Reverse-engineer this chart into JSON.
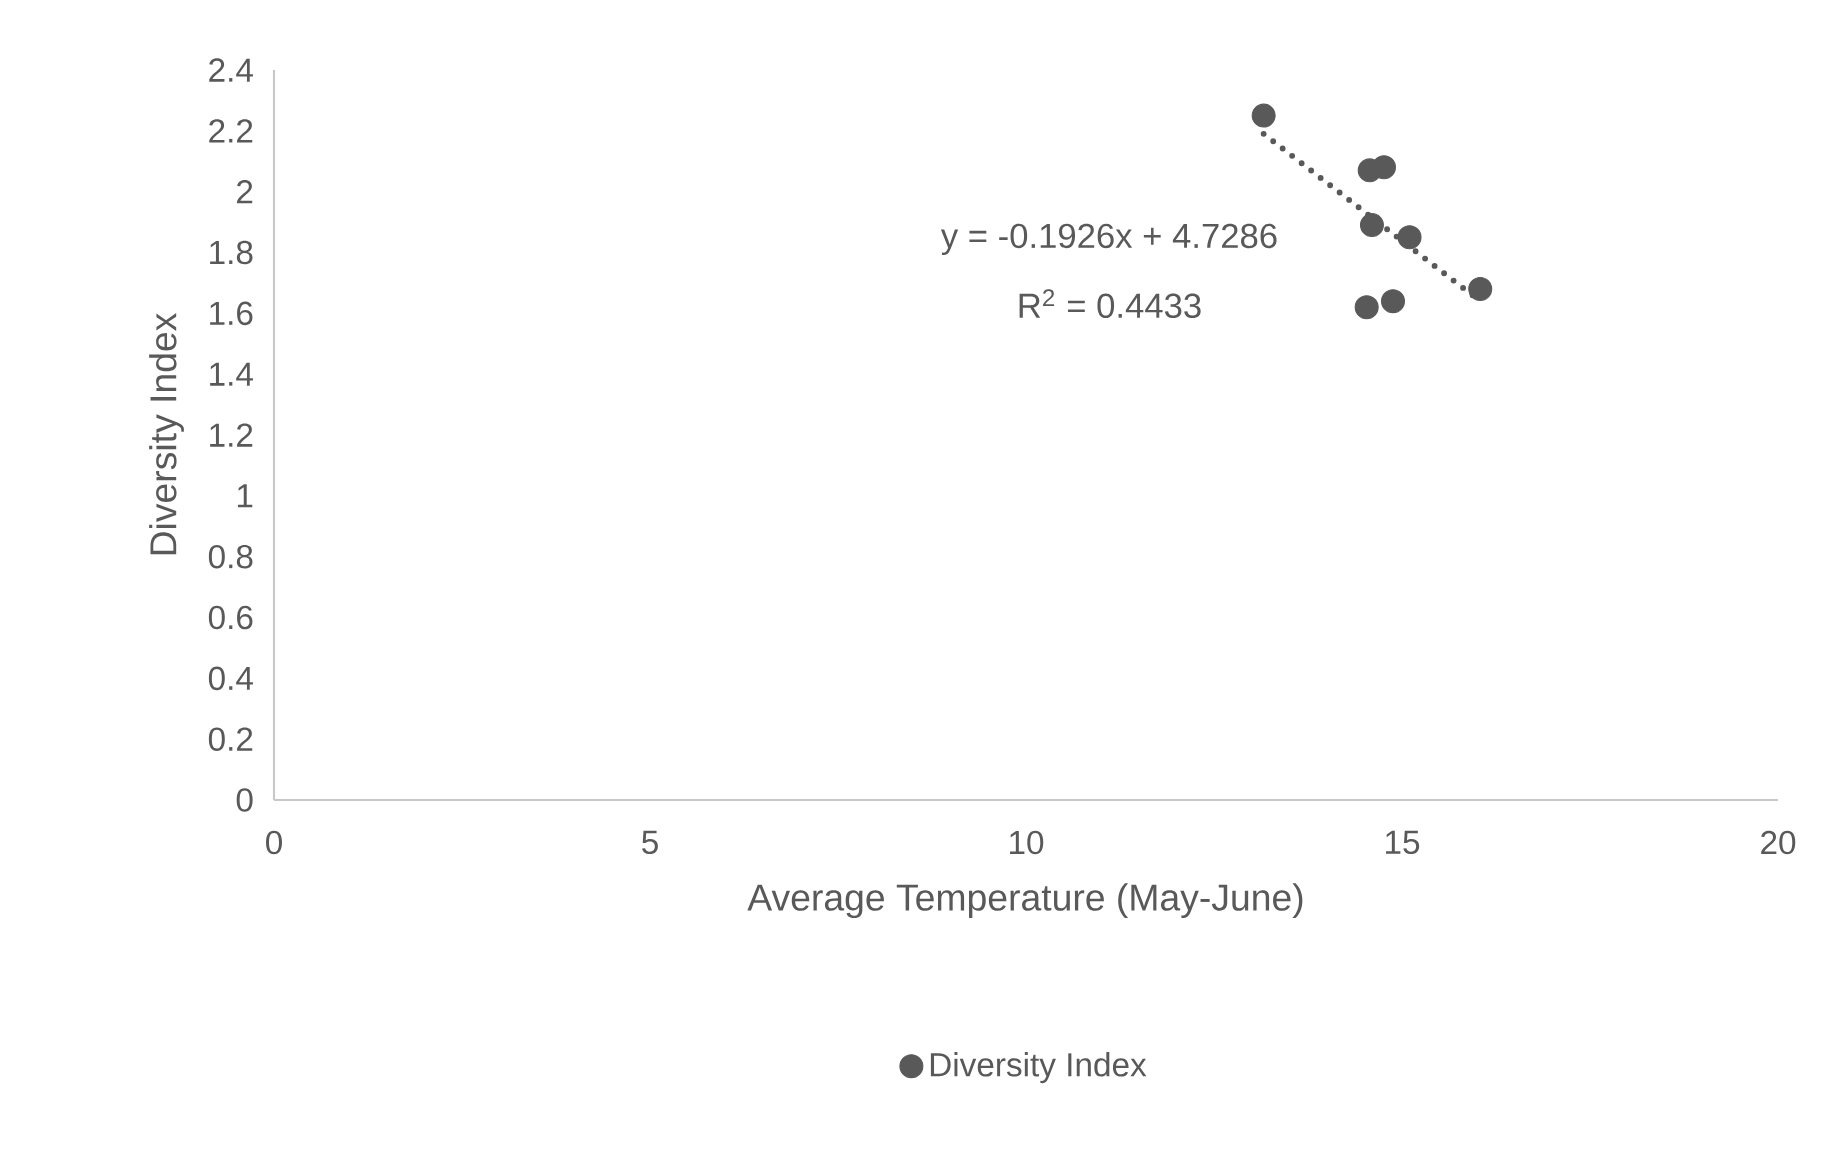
{
  "chart_data": {
    "type": "scatter",
    "xlabel": "Average Temperature (May-June)",
    "ylabel": "Diversity Index",
    "series": [
      {
        "name": "Diversity Index",
        "color": "#595959",
        "marker": "circle",
        "x": [
          13.16,
          14.57,
          14.76,
          14.6,
          15.1,
          16.04,
          14.53,
          14.88
        ],
        "values": [
          2.25,
          2.07,
          2.08,
          1.89,
          1.85,
          1.68,
          1.62,
          1.64
        ]
      },
      {
        "type": "line",
        "color": "#595959",
        "line_style": "dotted",
        "marker": "none",
        "x": [
          13.16,
          16.04
        ],
        "values": [
          2.19,
          1.64
        ]
      }
    ],
    "annotations": [
      "y = -0.1926x + 4.7286",
      "R$^{2}$ = 0.4433"
    ],
    "xlim": [
      0,
      20
    ],
    "xticks": [
      0,
      5,
      10,
      15,
      20
    ],
    "ylim": [
      0,
      2.4
    ],
    "yticks": [
      0,
      0.2,
      0.4,
      0.6,
      0.8,
      1,
      1.2,
      1.4,
      1.6,
      1.8,
      2,
      2.2,
      2.4
    ],
    "grid": false,
    "legend": "bottom"
  }
}
